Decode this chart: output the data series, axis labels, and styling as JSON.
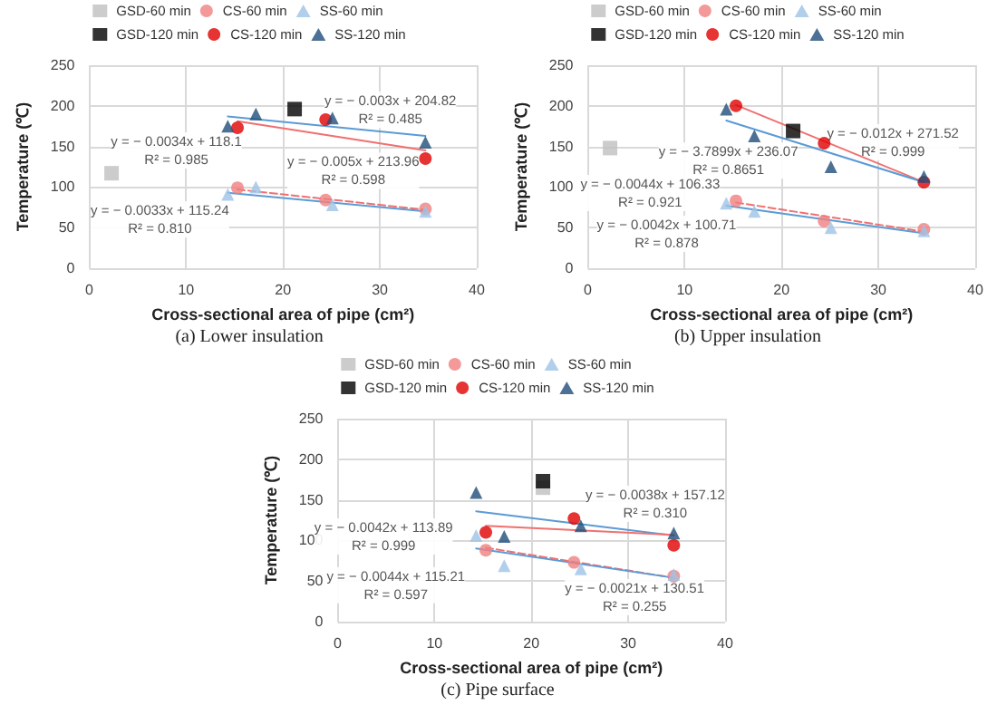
{
  "chart_data": [
    {
      "type": "scatter",
      "title": "(a) Lower insulation",
      "xlabel": "Cross-sectional area of pipe (cm²)",
      "ylabel": "Temperature (℃)",
      "xlim": [
        0,
        40
      ],
      "xticks": [
        0,
        10,
        20,
        30,
        40
      ],
      "ylim": [
        0,
        250
      ],
      "yticks": [
        0,
        50,
        100,
        150,
        200,
        250
      ],
      "grid": true,
      "legend": "top",
      "series": [
        {
          "name": "GSD-60 min",
          "color": "#bfbfbf",
          "marker": "square",
          "x": [
            2.3
          ],
          "values": [
            117
          ]
        },
        {
          "name": "CS-60 min",
          "color": "#f08080",
          "marker": "circle",
          "x": [
            15.3,
            24.4,
            34.7
          ],
          "values": [
            99,
            84,
            73
          ]
        },
        {
          "name": "SS-60 min",
          "color": "#9dc3e6",
          "marker": "triangle",
          "x": [
            14.3,
            17.2,
            25.1,
            34.7
          ],
          "values": [
            91,
            100,
            78,
            70
          ]
        },
        {
          "name": "GSD-120 min",
          "color": "#000000",
          "marker": "square",
          "x": [
            21.2
          ],
          "values": [
            196
          ]
        },
        {
          "name": "CS-120 min",
          "color": "#e00000",
          "marker": "circle",
          "x": [
            15.3,
            24.4,
            34.7
          ],
          "values": [
            173,
            183,
            135
          ]
        },
        {
          "name": "SS-120 min",
          "color": "#1f4e79",
          "marker": "triangle",
          "x": [
            14.3,
            17.2,
            25.1,
            34.7
          ],
          "values": [
            175,
            190,
            185,
            155
          ]
        },
        {
          "type": "line",
          "color": "#f07070",
          "marker": "none",
          "line_style": "solid",
          "x": [
            15.3,
            34.7
          ],
          "values": [
            181,
            145
          ]
        },
        {
          "type": "line",
          "color": "#5b9bd5",
          "marker": "none",
          "line_style": "solid",
          "x": [
            14.3,
            34.7
          ],
          "values": [
            187,
            163
          ]
        },
        {
          "type": "line",
          "color": "#f07070",
          "marker": "none",
          "line_style": "dashed",
          "x": [
            15.3,
            34.7
          ],
          "values": [
            97,
            72
          ]
        },
        {
          "type": "line",
          "color": "#5b9bd5",
          "marker": "none",
          "line_style": "solid",
          "x": [
            14.3,
            34.7
          ],
          "values": [
            93,
            70
          ]
        }
      ],
      "annotations": [
        "y = − 0.0034x + 118.1\nR² = 0.985",
        "y = − 0.003x + 204.82\nR² = 0.485",
        "y = − 0.005x + 213.96\nR² = 0.598",
        "y = − 0.0033x + 115.24\nR² = 0.810"
      ]
    },
    {
      "type": "scatter",
      "title": "(b) Upper insulation",
      "xlabel": "Cross-sectional area of pipe (cm²)",
      "ylabel": "Temperature (℃)",
      "xlim": [
        0,
        40
      ],
      "xticks": [
        0,
        10,
        20,
        30,
        40
      ],
      "ylim": [
        0,
        250
      ],
      "yticks": [
        0,
        50,
        100,
        150,
        200,
        250
      ],
      "grid": true,
      "legend": "top",
      "series": [
        {
          "name": "GSD-60 min",
          "color": "#bfbfbf",
          "marker": "square",
          "x": [
            2.3
          ],
          "values": [
            148
          ]
        },
        {
          "name": "CS-60 min",
          "color": "#f08080",
          "marker": "circle",
          "x": [
            15.3,
            24.4,
            34.7
          ],
          "values": [
            83,
            58,
            48
          ]
        },
        {
          "name": "SS-60 min",
          "color": "#9dc3e6",
          "marker": "triangle",
          "x": [
            14.3,
            17.2,
            25.1,
            34.7
          ],
          "values": [
            80,
            70,
            50,
            46
          ]
        },
        {
          "name": "GSD-120 min",
          "color": "#000000",
          "marker": "square",
          "x": [
            21.2
          ],
          "values": [
            169
          ]
        },
        {
          "name": "CS-120 min",
          "color": "#e00000",
          "marker": "circle",
          "x": [
            15.3,
            24.4,
            34.7
          ],
          "values": [
            200,
            154,
            106
          ]
        },
        {
          "name": "SS-120 min",
          "color": "#1f4e79",
          "marker": "triangle",
          "x": [
            14.3,
            17.2,
            25.1,
            34.7
          ],
          "values": [
            196,
            163,
            125,
            113
          ]
        },
        {
          "type": "line",
          "color": "#f07070",
          "marker": "none",
          "line_style": "solid",
          "x": [
            15.3,
            34.7
          ],
          "values": [
            201,
            106
          ]
        },
        {
          "type": "line",
          "color": "#5b9bd5",
          "marker": "none",
          "line_style": "solid",
          "x": [
            14.3,
            34.7
          ],
          "values": [
            182,
            106
          ]
        },
        {
          "type": "line",
          "color": "#f07070",
          "marker": "none",
          "line_style": "dashed",
          "x": [
            15.3,
            34.7
          ],
          "values": [
            81,
            45
          ]
        },
        {
          "type": "line",
          "color": "#5b9bd5",
          "marker": "none",
          "line_style": "solid",
          "x": [
            14.3,
            34.7
          ],
          "values": [
            77,
            43
          ]
        }
      ],
      "annotations": [
        "y = − 0.012x + 271.52\nR² = 0.999",
        "y = − 3.7899x + 236.07\nR² = 0.8651",
        "y = − 0.0044x + 106.33\nR² = 0.921",
        "y = − 0.0042x + 100.71\nR² = 0.878"
      ]
    },
    {
      "type": "scatter",
      "title": "(c) Pipe surface",
      "xlabel": "Cross-sectional area of pipe (cm²)",
      "ylabel": "Temperature (℃)",
      "xlim": [
        0,
        40
      ],
      "xticks": [
        0,
        10,
        20,
        30,
        40
      ],
      "ylim": [
        0,
        250
      ],
      "yticks": [
        0,
        50,
        100,
        150,
        200,
        250
      ],
      "grid": true,
      "legend": "top",
      "series": [
        {
          "name": "GSD-60 min",
          "color": "#bfbfbf",
          "marker": "square",
          "x": [
            21.2
          ],
          "values": [
            165
          ]
        },
        {
          "name": "CS-60 min",
          "color": "#f08080",
          "marker": "circle",
          "x": [
            15.3,
            24.4,
            34.7
          ],
          "values": [
            88,
            73,
            56
          ]
        },
        {
          "name": "SS-60 min",
          "color": "#9dc3e6",
          "marker": "triangle",
          "x": [
            14.3,
            17.2,
            25.1,
            34.7
          ],
          "values": [
            106,
            69,
            65,
            58
          ]
        },
        {
          "name": "GSD-120 min",
          "color": "#000000",
          "marker": "square",
          "x": [
            21.2
          ],
          "values": [
            173
          ]
        },
        {
          "name": "CS-120 min",
          "color": "#e00000",
          "marker": "circle",
          "x": [
            15.3,
            24.4,
            34.7
          ],
          "values": [
            110,
            127,
            94
          ]
        },
        {
          "name": "SS-120 min",
          "color": "#1f4e79",
          "marker": "triangle",
          "x": [
            14.3,
            17.2,
            25.1,
            34.7
          ],
          "values": [
            159,
            105,
            118,
            109
          ]
        },
        {
          "type": "line",
          "color": "#5b9bd5",
          "marker": "none",
          "line_style": "solid",
          "x": [
            14.3,
            34.7
          ],
          "values": [
            136,
            106
          ]
        },
        {
          "type": "line",
          "color": "#f07070",
          "marker": "none",
          "line_style": "solid",
          "x": [
            15.3,
            34.7
          ],
          "values": [
            118,
            107
          ]
        },
        {
          "type": "line",
          "color": "#f07070",
          "marker": "none",
          "line_style": "dashed",
          "x": [
            15.3,
            34.7
          ],
          "values": [
            91,
            54
          ]
        },
        {
          "type": "line",
          "color": "#5b9bd5",
          "marker": "none",
          "line_style": "solid",
          "x": [
            14.3,
            34.7
          ],
          "values": [
            90,
            54
          ]
        }
      ],
      "annotations": [
        "y = − 0.0038x + 157.12\nR² = 0.310",
        "y = − 0.0042x + 113.89\nR² = 0.999",
        "y = − 0.0021x + 130.51\nR² = 0.255",
        "y = − 0.0044x + 115.21\nR² = 0.597"
      ]
    }
  ]
}
